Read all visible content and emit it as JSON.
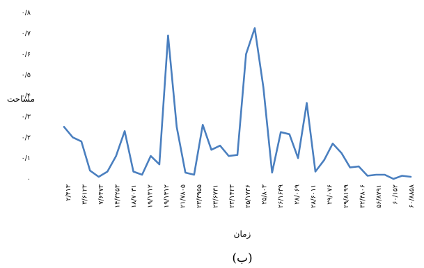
{
  "chart_data": {
    "type": "line",
    "ylabel": "مساحت",
    "xlabel": "زمان",
    "caption": "(ب)",
    "ylim": [
      0,
      0.8
    ],
    "yticks": [
      "۰",
      "۰/۱",
      "۰/۲",
      "۰/۳",
      "۰/۴",
      "۰/۵",
      "۰/۶",
      "۰/۷",
      "۰/۸"
    ],
    "grid": false,
    "line_color": "#4a7fbf",
    "x_tick_labels": [
      "۲/۴۱۳",
      "۳/۶۱۲۳",
      "۷/۶۴۷۳",
      "۱۴/۳۲۵۳",
      "۱۸/۷۰۳۱",
      "۱۹/۱۳۱۲",
      "۱۹/۱۳۱۲",
      "۲۱/۷۸۰۵",
      "۲۳/۳۹۵۵",
      "۲۳/۶۷۳۱",
      "۲۳/۱۴۲۳",
      "۲۵/۱۷۳۶",
      "۲۵/۸۰۳",
      "۲۶/۱۶۳۹",
      "۲۸/۰۶۹",
      "۲۸/۶۰۱۱",
      "۲۹/۰۷۶",
      "۲۹/۸۱۹۹",
      "۳۲/۴۸۰۶",
      "۵۶/۸۷۹۱",
      "۶۰/۱۵۲",
      "۶۰/۸۸۵۸"
    ],
    "values": [
      0.25,
      0.2,
      0.18,
      0.04,
      0.01,
      0.035,
      0.11,
      0.23,
      0.035,
      0.02,
      0.11,
      0.07,
      0.69,
      0.25,
      0.03,
      0.02,
      0.26,
      0.14,
      0.16,
      0.11,
      0.115,
      0.6,
      0.725,
      0.44,
      0.03,
      0.225,
      0.215,
      0.1,
      0.365,
      0.035,
      0.09,
      0.17,
      0.125,
      0.055,
      0.06,
      0.015,
      0.02,
      0.02,
      0.0,
      0.015,
      0.01
    ]
  }
}
